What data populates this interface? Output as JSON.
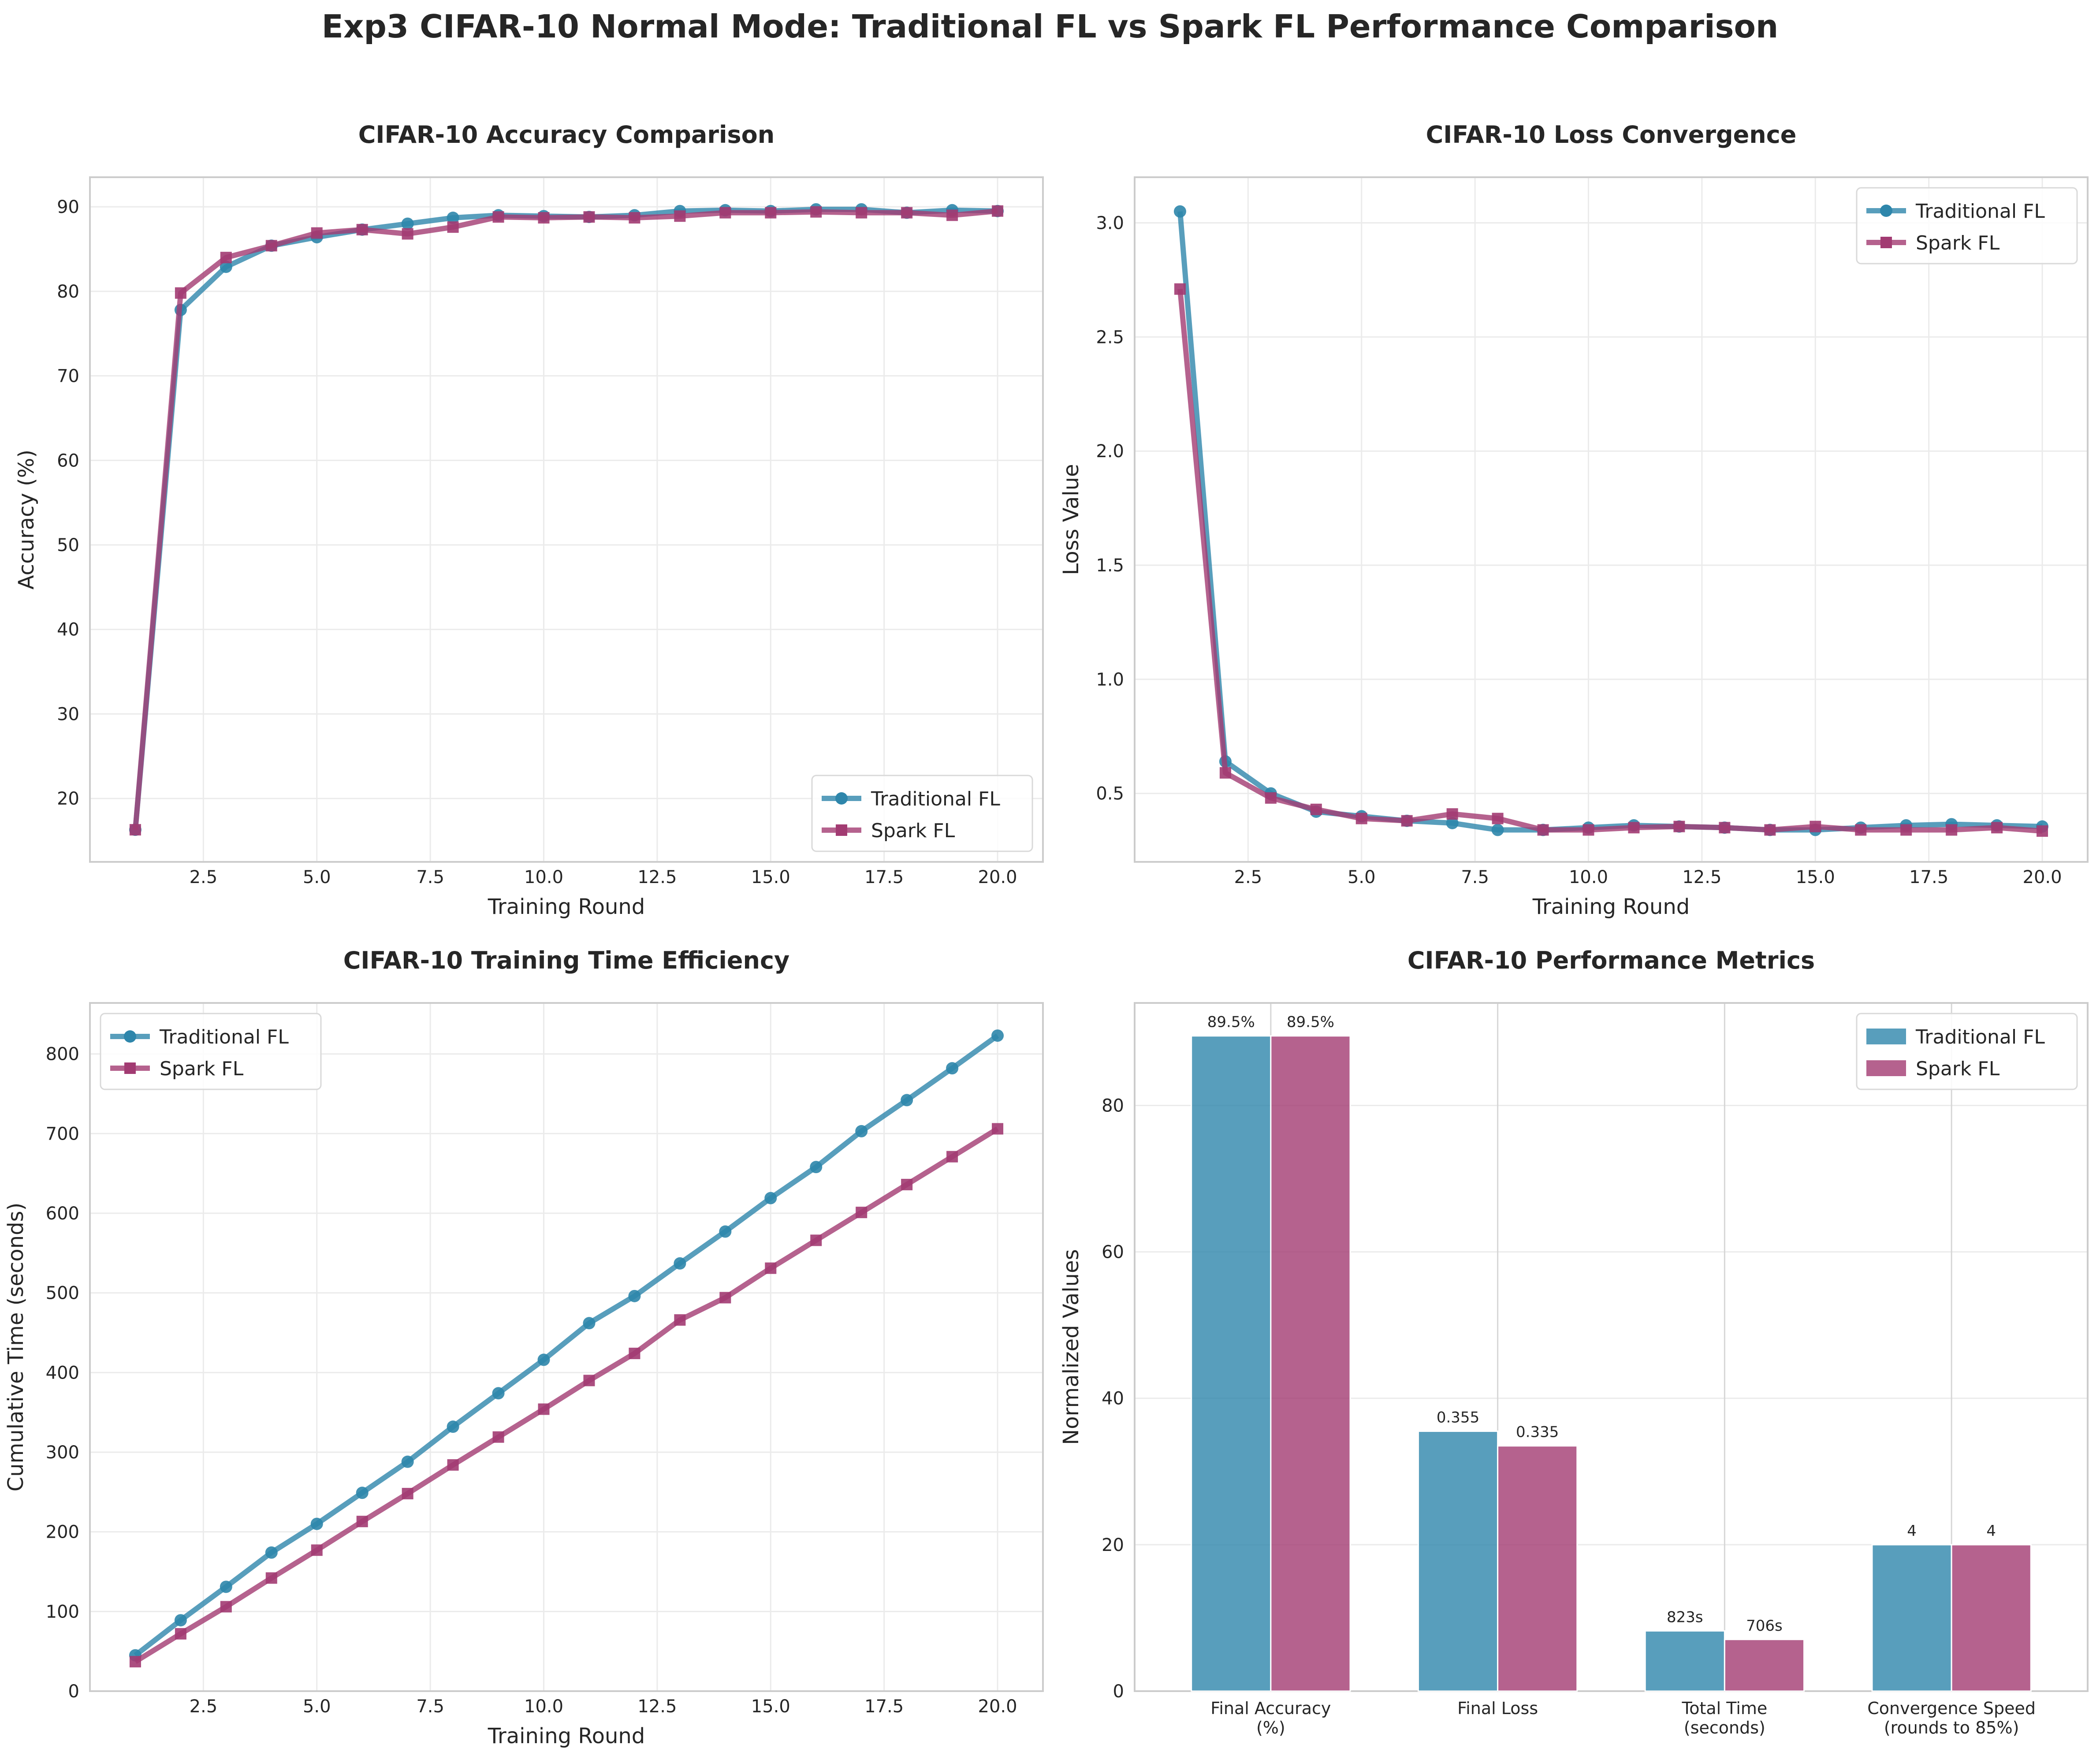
{
  "title": "Exp3 CIFAR-10 Normal Mode: Traditional FL vs Spark FL Performance Comparison",
  "colors": {
    "traditional": "#2E86AB",
    "spark": "#A23B72",
    "grid": "#EBEBEB",
    "axis": "#CCCCCC",
    "text": "#262626"
  },
  "chart_data": [
    {
      "type": "line",
      "title": "CIFAR-10 Accuracy Comparison",
      "xlabel": "Training Round",
      "ylabel": "Accuracy (%)",
      "xlim": [
        0,
        21
      ],
      "ylim": [
        12.5,
        93.5
      ],
      "xticks": [
        2.5,
        5.0,
        7.5,
        10.0,
        12.5,
        15.0,
        17.5,
        20.0
      ],
      "xtick_labels": [
        "2.5",
        "5.0",
        "7.5",
        "10.0",
        "12.5",
        "15.0",
        "17.5",
        "20.0"
      ],
      "yticks": [
        20,
        30,
        40,
        50,
        60,
        70,
        80,
        90
      ],
      "ytick_labels": [
        "20",
        "30",
        "40",
        "50",
        "60",
        "70",
        "80",
        "90"
      ],
      "legend": "lower-right",
      "grid": true,
      "x": [
        1,
        2,
        3,
        4,
        5,
        6,
        7,
        8,
        9,
        10,
        11,
        12,
        13,
        14,
        15,
        16,
        17,
        18,
        19,
        20
      ],
      "series": [
        {
          "name": "Traditional FL",
          "marker": "circle",
          "values": [
            16.3,
            77.8,
            82.9,
            85.4,
            86.4,
            87.3,
            88.0,
            88.7,
            89.0,
            88.9,
            88.8,
            89.0,
            89.5,
            89.6,
            89.5,
            89.7,
            89.7,
            89.3,
            89.6,
            89.5
          ]
        },
        {
          "name": "Spark FL",
          "marker": "square",
          "values": [
            16.3,
            79.8,
            84.0,
            85.4,
            86.9,
            87.3,
            86.8,
            87.6,
            88.8,
            88.7,
            88.8,
            88.7,
            88.9,
            89.3,
            89.3,
            89.4,
            89.3,
            89.3,
            89.0,
            89.5
          ]
        }
      ]
    },
    {
      "type": "line",
      "title": "CIFAR-10 Loss Convergence",
      "xlabel": "Training Round",
      "ylabel": "Loss Value",
      "xlim": [
        0,
        21
      ],
      "ylim": [
        0.2,
        3.2
      ],
      "xticks": [
        2.5,
        5.0,
        7.5,
        10.0,
        12.5,
        15.0,
        17.5,
        20.0
      ],
      "xtick_labels": [
        "2.5",
        "5.0",
        "7.5",
        "10.0",
        "12.5",
        "15.0",
        "17.5",
        "20.0"
      ],
      "yticks": [
        0.5,
        1.0,
        1.5,
        2.0,
        2.5,
        3.0
      ],
      "ytick_labels": [
        "0.5",
        "1.0",
        "1.5",
        "2.0",
        "2.5",
        "3.0"
      ],
      "legend": "upper-right",
      "grid": true,
      "x": [
        1,
        2,
        3,
        4,
        5,
        6,
        7,
        8,
        9,
        10,
        11,
        12,
        13,
        14,
        15,
        16,
        17,
        18,
        19,
        20
      ],
      "series": [
        {
          "name": "Traditional FL",
          "marker": "circle",
          "values": [
            3.05,
            0.64,
            0.5,
            0.42,
            0.4,
            0.38,
            0.37,
            0.34,
            0.34,
            0.35,
            0.36,
            0.355,
            0.35,
            0.34,
            0.34,
            0.35,
            0.36,
            0.365,
            0.36,
            0.355
          ]
        },
        {
          "name": "Spark FL",
          "marker": "square",
          "values": [
            2.71,
            0.59,
            0.48,
            0.43,
            0.39,
            0.38,
            0.41,
            0.39,
            0.34,
            0.34,
            0.35,
            0.355,
            0.35,
            0.34,
            0.355,
            0.34,
            0.34,
            0.34,
            0.35,
            0.335
          ]
        }
      ]
    },
    {
      "type": "line",
      "title": "CIFAR-10 Training Time Efficiency",
      "xlabel": "Training Round",
      "ylabel": "Cumulative Time (seconds)",
      "xlim": [
        0,
        21
      ],
      "ylim": [
        0,
        864
      ],
      "xticks": [
        2.5,
        5.0,
        7.5,
        10.0,
        12.5,
        15.0,
        17.5,
        20.0
      ],
      "xtick_labels": [
        "2.5",
        "5.0",
        "7.5",
        "10.0",
        "12.5",
        "15.0",
        "17.5",
        "20.0"
      ],
      "yticks": [
        0,
        100,
        200,
        300,
        400,
        500,
        600,
        700,
        800
      ],
      "ytick_labels": [
        "0",
        "100",
        "200",
        "300",
        "400",
        "500",
        "600",
        "700",
        "800"
      ],
      "legend": "upper-left",
      "grid": true,
      "x": [
        1,
        2,
        3,
        4,
        5,
        6,
        7,
        8,
        9,
        10,
        11,
        12,
        13,
        14,
        15,
        16,
        17,
        18,
        19,
        20
      ],
      "series": [
        {
          "name": "Traditional FL",
          "marker": "circle",
          "values": [
            45,
            89,
            131,
            174,
            210,
            249,
            288,
            332,
            374,
            416,
            462,
            496,
            537,
            577,
            619,
            658,
            703,
            742,
            782,
            823
          ]
        },
        {
          "name": "Spark FL",
          "marker": "square",
          "values": [
            37,
            72,
            106,
            142,
            177,
            213,
            248,
            284,
            319,
            354,
            390,
            424,
            466,
            494,
            531,
            566,
            601,
            636,
            671,
            706
          ]
        }
      ]
    },
    {
      "type": "bar",
      "title": "CIFAR-10 Performance Metrics",
      "xlabel": "",
      "ylabel": "Normalized Values",
      "ylim": [
        0,
        94
      ],
      "yticks": [
        0,
        20,
        40,
        60,
        80
      ],
      "ytick_labels": [
        "0",
        "20",
        "40",
        "60",
        "80"
      ],
      "legend": "upper-right",
      "grid": true,
      "categories": [
        [
          "Final Accuracy",
          "(%)"
        ],
        [
          "Final Loss"
        ],
        [
          "Total Time",
          "(seconds)"
        ],
        [
          "Convergence Speed",
          "(rounds to 85%)"
        ]
      ],
      "series": [
        {
          "name": "Traditional FL",
          "values": [
            89.5,
            35.5,
            8.23,
            20
          ],
          "labels": [
            "89.5%",
            "0.355",
            "823s",
            "4"
          ]
        },
        {
          "name": "Spark FL",
          "values": [
            89.5,
            33.5,
            7.06,
            20
          ],
          "labels": [
            "89.5%",
            "0.335",
            "706s",
            "4"
          ]
        }
      ]
    }
  ]
}
